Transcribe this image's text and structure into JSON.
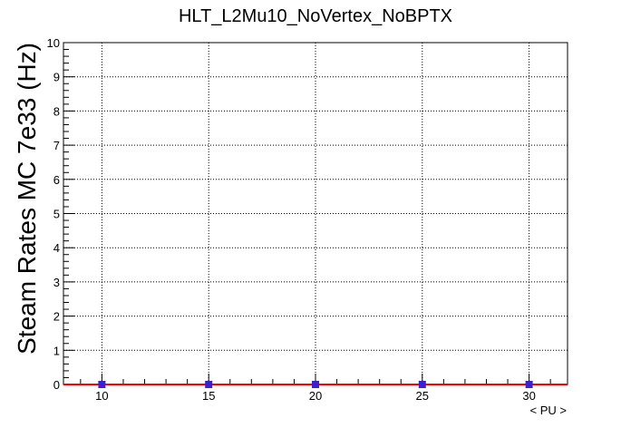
{
  "chart_data": {
    "type": "scatter",
    "title": "HLT_L2Mu10_NoVertex_NoBPTX",
    "xlabel": "< PU >",
    "ylabel": "Steam Rates MC 7e33 (Hz)",
    "xlim": [
      8.2,
      31.8
    ],
    "ylim": [
      0,
      10
    ],
    "x_ticks": [
      10,
      15,
      20,
      25,
      30
    ],
    "y_ticks": [
      0,
      1,
      2,
      3,
      4,
      5,
      6,
      7,
      8,
      9,
      10
    ],
    "grid": true,
    "series": [
      {
        "x": [
          10,
          15,
          20,
          25,
          30
        ],
        "y": [
          0,
          0,
          0,
          0,
          0
        ],
        "marker_color": "#3a1fd6"
      }
    ],
    "fit_line": {
      "x": [
        8.2,
        31.8
      ],
      "y": [
        0,
        0
      ],
      "color": "#ff0000"
    }
  }
}
